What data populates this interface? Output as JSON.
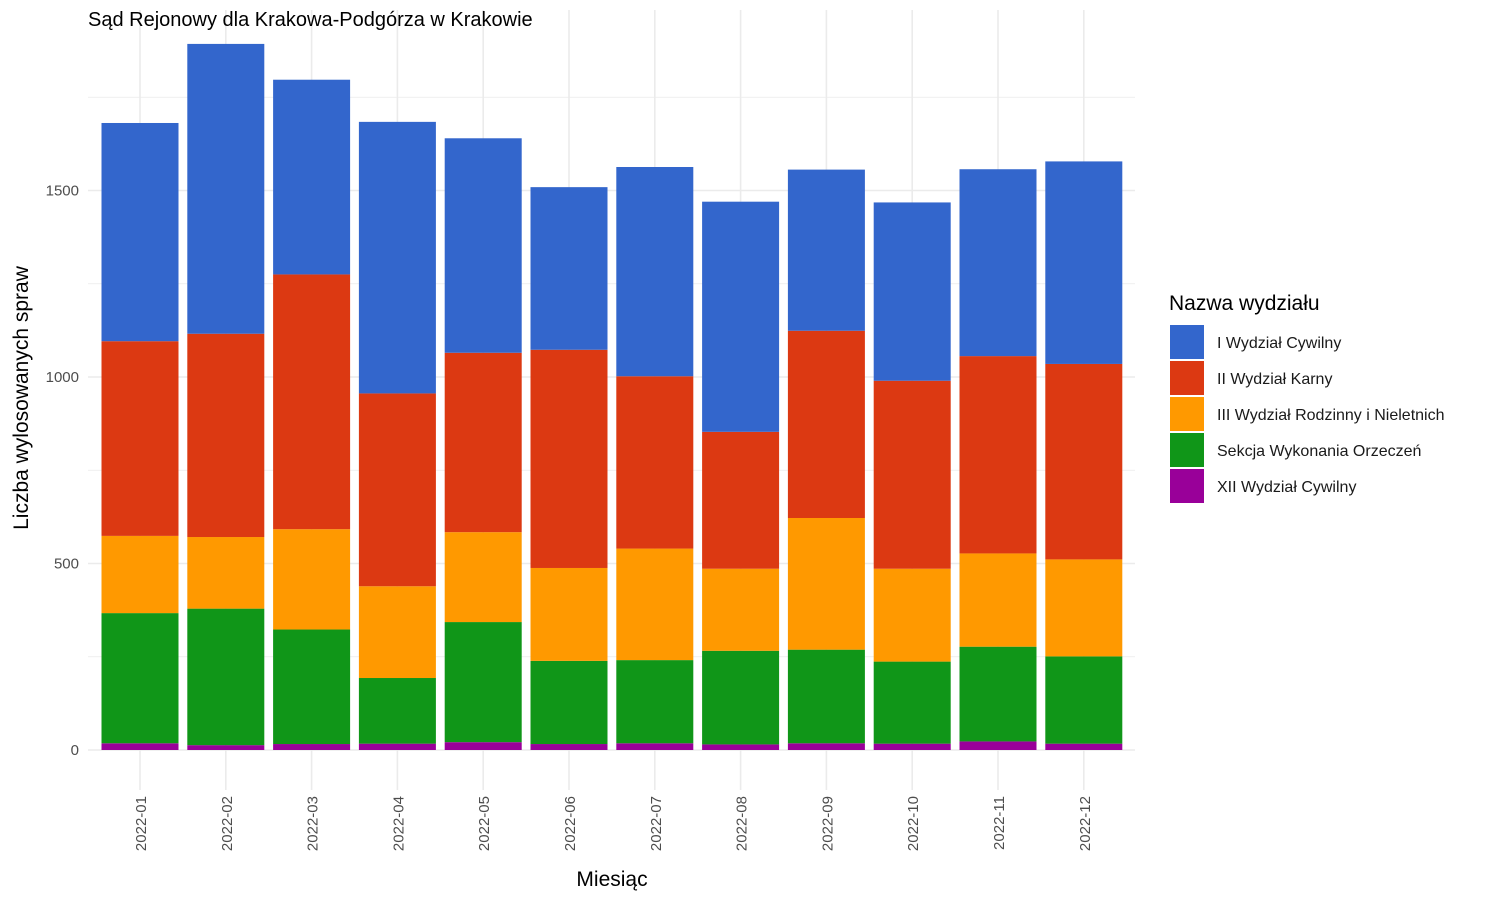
{
  "chart_data": {
    "type": "bar",
    "stacked": true,
    "title": "Sąd Rejonowy dla Krakowa-Podgórza w Krakowie",
    "xlabel": "Miesiąc",
    "ylabel": "Liczba wylosowanych spraw",
    "ylim": [
      0,
      1900
    ],
    "yticks": [
      0,
      500,
      1000,
      1500
    ],
    "ytick_labels": [
      "0",
      "500",
      "1000",
      "1500"
    ],
    "grid": true,
    "legend_title": "Nazwa wydziału",
    "legend_position": "right",
    "categories": [
      "2022-01",
      "2022-02",
      "2022-03",
      "2022-04",
      "2022-05",
      "2022-06",
      "2022-07",
      "2022-08",
      "2022-09",
      "2022-10",
      "2022-11",
      "2022-12"
    ],
    "series": [
      {
        "name": "I Wydział Cywilny",
        "color": "#3366cc",
        "values": [
          585,
          777,
          522,
          728,
          575,
          436,
          561,
          617,
          432,
          478,
          501,
          543
        ]
      },
      {
        "name": "II Wydział Karny",
        "color": "#dc3912",
        "values": [
          522,
          545,
          683,
          517,
          481,
          585,
          462,
          367,
          502,
          504,
          529,
          524
        ]
      },
      {
        "name": "III Wydział Rodzinny i Nieletnich",
        "color": "#ff9900",
        "values": [
          207,
          192,
          269,
          246,
          241,
          249,
          299,
          220,
          353,
          249,
          250,
          260
        ]
      },
      {
        "name": "Sekcja Wykonania Orzeczeń",
        "color": "#109618",
        "values": [
          349,
          366,
          307,
          176,
          322,
          223,
          223,
          251,
          251,
          220,
          254,
          234
        ]
      },
      {
        "name": "XII Wydział Cywilny",
        "color": "#990099",
        "values": [
          18,
          13,
          16,
          17,
          21,
          16,
          18,
          15,
          18,
          17,
          23,
          17
        ]
      }
    ]
  }
}
